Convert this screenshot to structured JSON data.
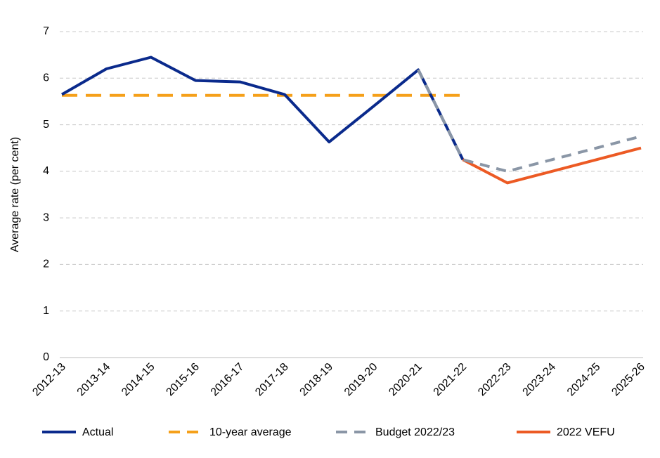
{
  "chart_data": {
    "type": "line",
    "title": "",
    "xlabel": "",
    "ylabel": "Average rate (per cent)",
    "ylim": [
      0,
      7
    ],
    "yticks": [
      0,
      1,
      2,
      3,
      4,
      5,
      6,
      7
    ],
    "grid": true,
    "legend_position": "bottom",
    "categories": [
      "2012-13",
      "2013-14",
      "2014-15",
      "2015-16",
      "2016-17",
      "2017-18",
      "2018-19",
      "2019-20",
      "2020-21",
      "2021-22",
      "2022-23",
      "2023-24",
      "2024-25",
      "2025-26"
    ],
    "series": [
      {
        "name": "Actual",
        "color": "#0a2a8c",
        "style": "solid",
        "values": [
          5.65,
          6.2,
          6.45,
          5.95,
          5.92,
          5.65,
          4.63,
          5.4,
          6.18,
          4.25,
          null,
          null,
          null,
          null
        ]
      },
      {
        "name": "10-year average",
        "color": "#f5a01a",
        "style": "dashed",
        "values": [
          5.63,
          5.63,
          5.63,
          5.63,
          5.63,
          5.63,
          5.63,
          5.63,
          5.63,
          5.63,
          null,
          null,
          null,
          null
        ]
      },
      {
        "name": "Budget 2022/23",
        "color": "#8a96a6",
        "style": "dashed",
        "values": [
          null,
          null,
          null,
          null,
          null,
          null,
          null,
          null,
          6.18,
          4.25,
          4.0,
          4.25,
          4.5,
          4.75
        ]
      },
      {
        "name": "2022 VEFU",
        "color": "#ec5a24",
        "style": "solid",
        "values": [
          null,
          null,
          null,
          null,
          null,
          null,
          null,
          null,
          null,
          4.25,
          3.75,
          4.0,
          4.25,
          4.5
        ]
      }
    ]
  }
}
